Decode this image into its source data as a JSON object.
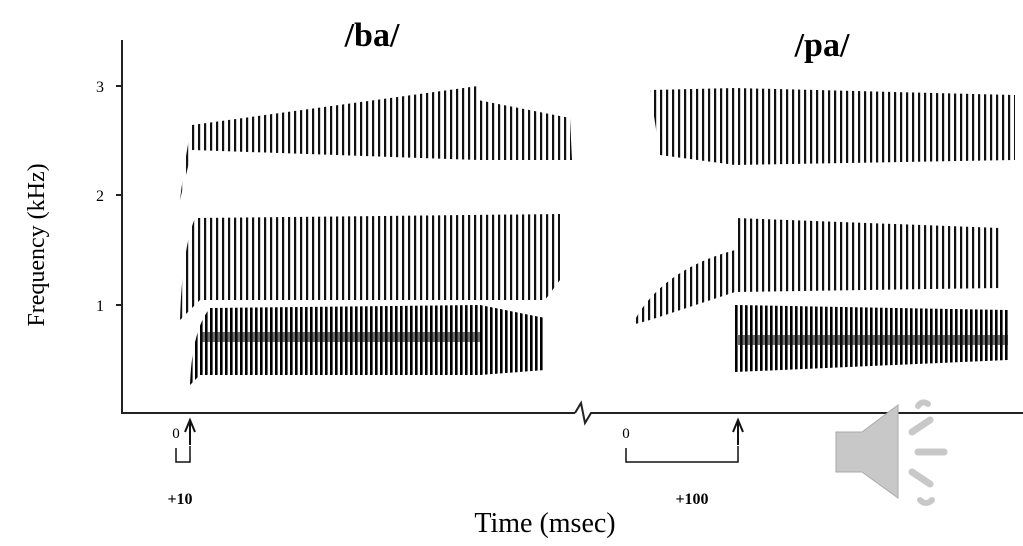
{
  "figure": {
    "y_axis": {
      "label": "Frequency (kHz)",
      "ticks": [
        "3",
        "2",
        "1"
      ]
    },
    "x_axis": {
      "label": "Time (msec)"
    },
    "panels": [
      {
        "title": "/ba/",
        "onset": "0",
        "vot": "+10"
      },
      {
        "title": "/pa/",
        "onset": "0",
        "vot": "+100"
      }
    ]
  }
}
